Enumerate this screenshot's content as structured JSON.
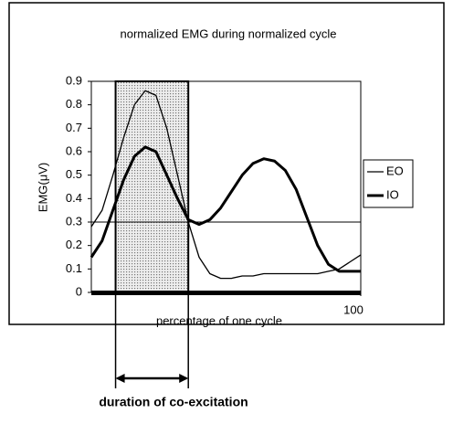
{
  "chart_data": {
    "type": "line",
    "title": "normalized EMG during normalized cycle",
    "x_label": "percentage of one cycle",
    "y_label": "EMG(μV)",
    "annotation": "duration of co-excitation",
    "x": [
      0,
      4,
      8,
      12,
      16,
      20,
      24,
      28,
      32,
      36,
      40,
      44,
      48,
      52,
      56,
      60,
      64,
      68,
      72,
      76,
      80,
      84,
      88,
      92,
      96,
      100
    ],
    "series": [
      {
        "name": "EO",
        "color": "#000000",
        "width": 1.3,
        "values": [
          0.28,
          0.35,
          0.5,
          0.66,
          0.8,
          0.86,
          0.84,
          0.7,
          0.5,
          0.3,
          0.15,
          0.08,
          0.06,
          0.06,
          0.07,
          0.07,
          0.08,
          0.08,
          0.08,
          0.08,
          0.08,
          0.08,
          0.09,
          0.1,
          0.13,
          0.16
        ]
      },
      {
        "name": "IO",
        "color": "#000000",
        "width": 3,
        "values": [
          0.15,
          0.22,
          0.35,
          0.48,
          0.58,
          0.62,
          0.6,
          0.5,
          0.4,
          0.31,
          0.29,
          0.31,
          0.36,
          0.43,
          0.5,
          0.55,
          0.57,
          0.56,
          0.52,
          0.44,
          0.32,
          0.2,
          0.12,
          0.09,
          0.09,
          0.09
        ]
      }
    ],
    "reference_line": 0.3,
    "shaded_range": [
      9,
      36
    ],
    "xlim": [
      0,
      100
    ],
    "xticks": [
      100
    ],
    "ylim": [
      0,
      0.9
    ],
    "yticks": [
      0,
      0.1,
      0.2,
      0.3,
      0.4,
      0.5,
      0.6,
      0.7,
      0.8,
      0.9
    ]
  }
}
